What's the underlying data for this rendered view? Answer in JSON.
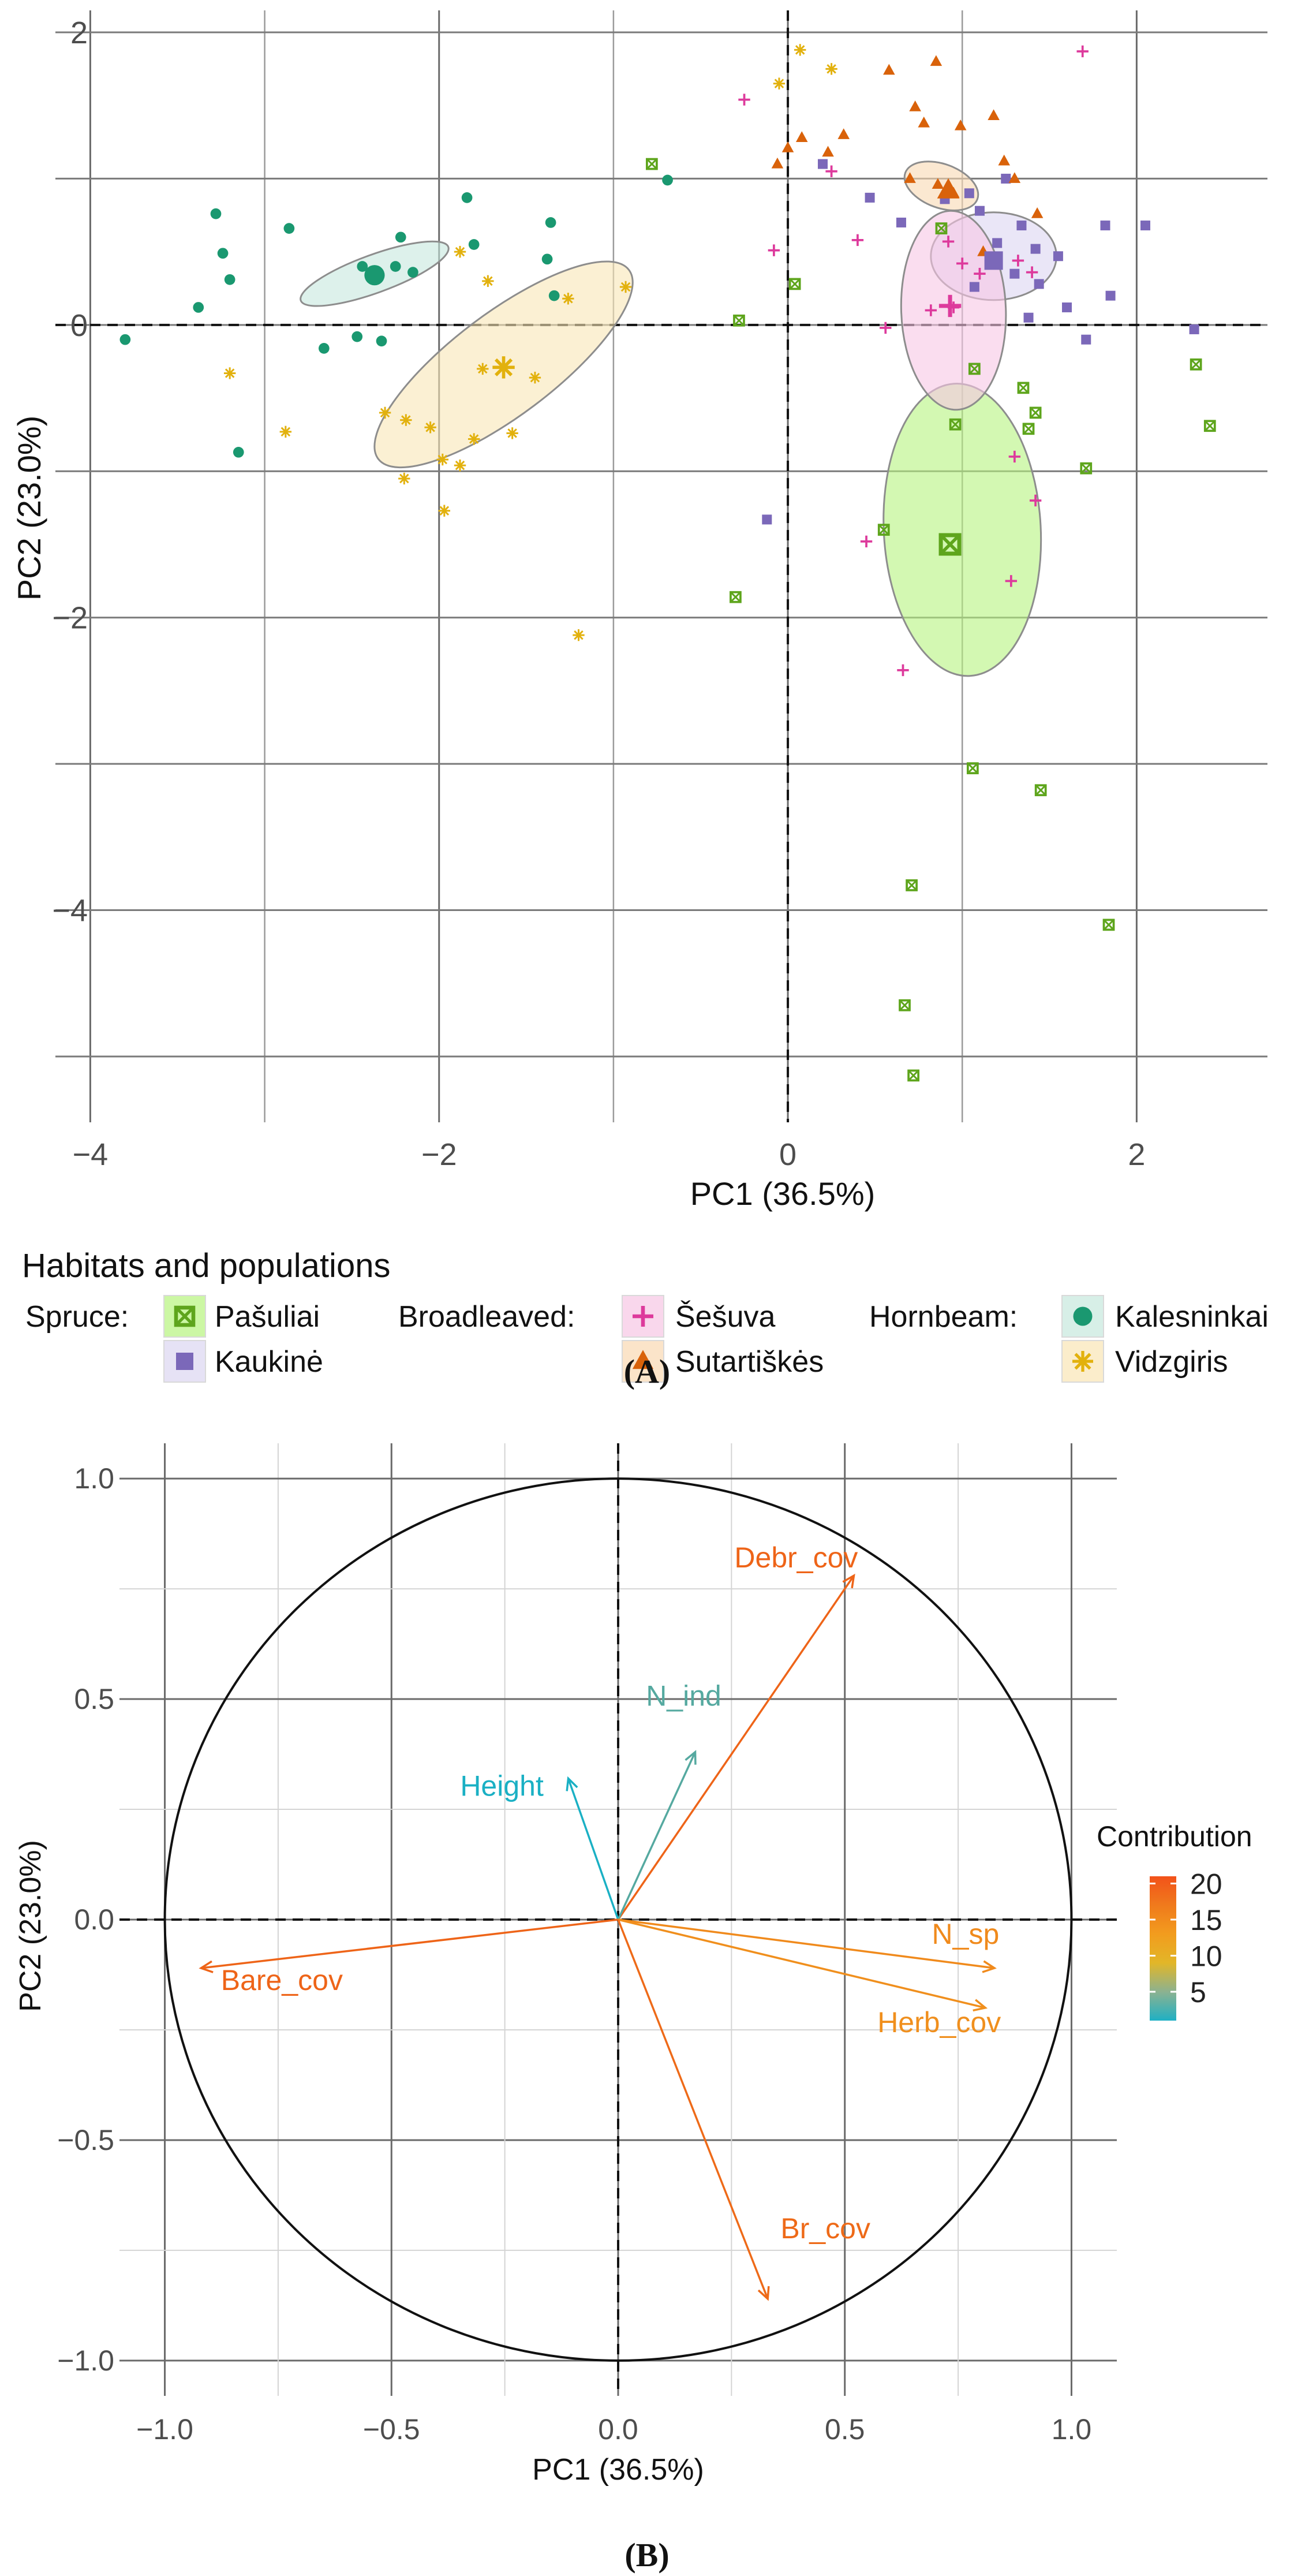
{
  "chart_data": [
    {
      "type": "scatter",
      "panel_label": "(A)",
      "title": "",
      "xlabel": "PC1 (36.5%)",
      "ylabel": "PC2 (23.0%)",
      "xlim": [
        -4.2,
        2.75
      ],
      "ylim": [
        -5.45,
        2.15
      ],
      "x_ticks": [
        -4,
        -2,
        0,
        2
      ],
      "y_ticks": [
        2,
        0,
        -2,
        -4
      ],
      "x_tick_labels": [
        "−4",
        "−2",
        "0",
        "2"
      ],
      "y_tick_labels": [
        "2",
        "0",
        "−2",
        "−4"
      ],
      "grid": true,
      "legend": {
        "title": "Habitats and populations",
        "position": "bottom",
        "groups": [
          {
            "label": "Spruce:",
            "entries": [
              "Pašuliai",
              "Kaukinė"
            ]
          },
          {
            "label": "Broadleaved:",
            "entries": [
              "Šešuva",
              "Sutartiškės"
            ]
          },
          {
            "label": "Hornbeam:",
            "entries": [
              "Kalesninkai",
              "Vidzgiris"
            ]
          }
        ]
      },
      "series": [
        {
          "name": "Pašuliai",
          "marker": "square-cross",
          "color": "#5ea51c",
          "fill": "#b6f47e",
          "centroid": [
            0.93,
            -1.5
          ],
          "ellipse": {
            "cx": 1.0,
            "cy": -1.4,
            "rx": 0.45,
            "ry": 1.0,
            "angle_deg": 3
          },
          "points": [
            [
              -0.78,
              1.1
            ],
            [
              -0.28,
              0.03
            ],
            [
              0.04,
              0.28
            ],
            [
              -0.3,
              -1.86
            ],
            [
              0.55,
              -1.4
            ],
            [
              0.88,
              0.66
            ],
            [
              0.96,
              -0.68
            ],
            [
              1.07,
              -0.3
            ],
            [
              1.35,
              -0.43
            ],
            [
              1.38,
              -0.71
            ],
            [
              1.42,
              -0.6
            ],
            [
              1.71,
              -0.98
            ],
            [
              2.34,
              -0.27
            ],
            [
              2.42,
              -0.69
            ],
            [
              0.71,
              -3.83
            ],
            [
              0.67,
              -4.65
            ],
            [
              0.72,
              -5.13
            ],
            [
              1.06,
              -3.03
            ],
            [
              1.45,
              -3.18
            ],
            [
              1.84,
              -4.1
            ]
          ]
        },
        {
          "name": "Kaukinė",
          "marker": "square",
          "color": "#7b68b9",
          "fill": "#dcd5f1",
          "centroid": [
            1.18,
            0.44
          ],
          "ellipse": {
            "cx": 1.18,
            "cy": 0.47,
            "rx": 0.36,
            "ry": 0.3,
            "angle_deg": 0
          },
          "points": [
            [
              0.2,
              1.1
            ],
            [
              0.47,
              0.87
            ],
            [
              0.65,
              0.7
            ],
            [
              0.9,
              0.86
            ],
            [
              1.04,
              0.9
            ],
            [
              1.1,
              0.78
            ],
            [
              1.2,
              0.56
            ],
            [
              1.25,
              1.0
            ],
            [
              1.34,
              0.68
            ],
            [
              1.3,
              0.35
            ],
            [
              1.42,
              0.52
            ],
            [
              1.44,
              0.28
            ],
            [
              1.55,
              0.47
            ],
            [
              1.6,
              0.12
            ],
            [
              1.71,
              -0.1
            ],
            [
              1.82,
              0.68
            ],
            [
              1.85,
              0.2
            ],
            [
              2.05,
              0.68
            ],
            [
              2.33,
              -0.03
            ],
            [
              1.38,
              0.05
            ],
            [
              -0.12,
              -1.33
            ],
            [
              1.07,
              0.26
            ]
          ]
        },
        {
          "name": "Šešuva",
          "marker": "plus",
          "color": "#dd3a9c",
          "fill": "#f7c6e4",
          "centroid": [
            0.93,
            0.13
          ],
          "ellipse": {
            "cx": 0.95,
            "cy": 0.1,
            "rx": 0.3,
            "ry": 0.68,
            "angle_deg": 2
          },
          "points": [
            [
              -0.25,
              1.54
            ],
            [
              -0.08,
              0.51
            ],
            [
              0.25,
              1.05
            ],
            [
              0.4,
              0.58
            ],
            [
              0.56,
              -0.02
            ],
            [
              0.92,
              0.57
            ],
            [
              1.0,
              0.42
            ],
            [
              1.1,
              0.35
            ],
            [
              1.32,
              0.44
            ],
            [
              1.4,
              0.36
            ],
            [
              1.3,
              -0.9
            ],
            [
              1.42,
              -1.2
            ],
            [
              0.45,
              -1.48
            ],
            [
              0.66,
              -2.36
            ],
            [
              1.28,
              -1.75
            ],
            [
              1.69,
              1.87
            ],
            [
              0.95,
              0.12
            ],
            [
              0.82,
              0.1
            ]
          ]
        },
        {
          "name": "Sutartiškės",
          "marker": "triangle",
          "color": "#d9620a",
          "fill": "#f9d9b2",
          "centroid": [
            0.92,
            0.92
          ],
          "ellipse": {
            "cx": 0.88,
            "cy": 0.95,
            "rx": 0.22,
            "ry": 0.15,
            "angle_deg": -20
          },
          "points": [
            [
              0.58,
              1.74
            ],
            [
              0.85,
              1.8
            ],
            [
              0.73,
              1.49
            ],
            [
              0.78,
              1.38
            ],
            [
              0.99,
              1.36
            ],
            [
              1.18,
              1.43
            ],
            [
              1.24,
              1.12
            ],
            [
              1.3,
              1.0
            ],
            [
              0.32,
              1.3
            ],
            [
              0.0,
              1.21
            ],
            [
              0.08,
              1.28
            ],
            [
              -0.06,
              1.1
            ],
            [
              0.23,
              1.18
            ],
            [
              0.7,
              1.0
            ],
            [
              0.95,
              0.9
            ],
            [
              1.12,
              0.5
            ],
            [
              1.43,
              0.76
            ],
            [
              0.86,
              0.96
            ]
          ]
        },
        {
          "name": "Kalesninkai",
          "marker": "circle",
          "color": "#1a9870",
          "fill": "#c6e8dd",
          "centroid": [
            -2.37,
            0.34
          ],
          "ellipse": {
            "cx": -2.37,
            "cy": 0.35,
            "rx": 0.45,
            "ry": 0.13,
            "angle_deg": 20
          },
          "points": [
            [
              -3.8,
              -0.1
            ],
            [
              -3.38,
              0.12
            ],
            [
              -3.28,
              0.76
            ],
            [
              -3.24,
              0.49
            ],
            [
              -3.2,
              0.31
            ],
            [
              -3.15,
              -0.87
            ],
            [
              -2.86,
              0.66
            ],
            [
              -2.66,
              -0.16
            ],
            [
              -2.44,
              0.4
            ],
            [
              -2.33,
              -0.11
            ],
            [
              -2.25,
              0.4
            ],
            [
              -2.22,
              0.6
            ],
            [
              -2.15,
              0.36
            ],
            [
              -1.84,
              0.87
            ],
            [
              -1.8,
              0.55
            ],
            [
              -1.38,
              0.45
            ],
            [
              -1.36,
              0.7
            ],
            [
              -1.34,
              0.2
            ],
            [
              -0.69,
              0.99
            ],
            [
              -2.47,
              -0.08
            ]
          ]
        },
        {
          "name": "Vidzgiris",
          "marker": "asterisk",
          "color": "#e2b10d",
          "fill": "#f9e6b5",
          "centroid": [
            -1.63,
            -0.29
          ],
          "ellipse": {
            "cx": -1.63,
            "cy": -0.27,
            "rx": 0.9,
            "ry": 0.35,
            "angle_deg": 37
          },
          "points": [
            [
              -3.2,
              -0.33
            ],
            [
              -2.88,
              -0.73
            ],
            [
              -2.31,
              -0.6
            ],
            [
              -2.19,
              -0.65
            ],
            [
              -2.2,
              -1.05
            ],
            [
              -2.05,
              -0.7
            ],
            [
              -1.98,
              -0.92
            ],
            [
              -1.88,
              -0.96
            ],
            [
              -1.8,
              -0.78
            ],
            [
              -1.58,
              -0.74
            ],
            [
              -1.75,
              -0.3
            ],
            [
              -1.45,
              -0.36
            ],
            [
              -1.97,
              -1.27
            ],
            [
              -1.88,
              0.5
            ],
            [
              -1.72,
              0.3
            ],
            [
              -1.26,
              0.18
            ],
            [
              -0.93,
              0.26
            ],
            [
              -1.2,
              -2.12
            ],
            [
              -0.05,
              1.65
            ],
            [
              0.07,
              1.88
            ],
            [
              0.25,
              1.75
            ]
          ]
        }
      ]
    },
    {
      "type": "biplot",
      "panel_label": "(B)",
      "title": "",
      "xlabel": "PC1 (36.5%)",
      "ylabel": "PC2 (23.0%)",
      "xlim": [
        -1.1,
        1.1
      ],
      "ylim": [
        -1.08,
        1.08
      ],
      "x_ticks": [
        -1.0,
        -0.5,
        0.0,
        0.5,
        1.0
      ],
      "y_ticks": [
        1.0,
        0.5,
        0.0,
        -0.5,
        -1.0
      ],
      "x_tick_labels": [
        "−1.0",
        "−0.5",
        "0.0",
        "0.5",
        "1.0"
      ],
      "y_tick_labels": [
        "1.0",
        "0.5",
        "0.0",
        "−0.5",
        "−1.0"
      ],
      "grid": true,
      "circle_radius": 1.0,
      "colorbar": {
        "title": "Contribution",
        "min": 1,
        "max": 21,
        "ticks": [
          20,
          15,
          10,
          5
        ],
        "colors": [
          "#1fb0c4",
          "#8cb290",
          "#e2b628",
          "#f29c1e",
          "#f07a1c",
          "#f2521a"
        ]
      },
      "vectors": [
        {
          "name": "Debr_cov",
          "x": 0.52,
          "y": 0.78,
          "contribution": 18.5,
          "color": "#ee6418"
        },
        {
          "name": "N_ind",
          "x": 0.17,
          "y": 0.38,
          "contribution": 4.0,
          "color": "#55a9a0"
        },
        {
          "name": "Height",
          "x": -0.11,
          "y": 0.32,
          "contribution": 2.0,
          "color": "#1ab0c4"
        },
        {
          "name": "N_sp",
          "x": 0.83,
          "y": -0.11,
          "contribution": 13.5,
          "color": "#f08a1c"
        },
        {
          "name": "Herb_cov",
          "x": 0.81,
          "y": -0.2,
          "contribution": 13.0,
          "color": "#f08f1d"
        },
        {
          "name": "Bare_cov",
          "x": -0.92,
          "y": -0.11,
          "contribution": 18.5,
          "color": "#ee6418"
        },
        {
          "name": "Br_cov",
          "x": 0.33,
          "y": -0.86,
          "contribution": 18.0,
          "color": "#ee6a18"
        }
      ]
    }
  ]
}
